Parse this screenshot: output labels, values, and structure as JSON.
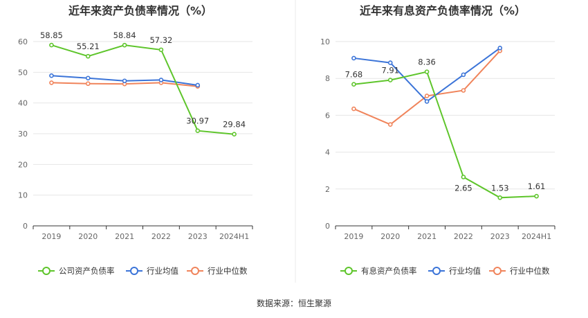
{
  "source": "数据来源：恒生聚源",
  "colors": {
    "green": "#5ec52b",
    "blue": "#3b74d8",
    "orange": "#f0845b",
    "grid": "#e6e6e6",
    "axis": "#333333",
    "divider": "#e8e8e8"
  },
  "chart_data": [
    {
      "type": "line",
      "title": "近年来资产负债率情况（%）",
      "categories": [
        "2019",
        "2020",
        "2021",
        "2022",
        "2023",
        "2024H1"
      ],
      "ylim": [
        0,
        60
      ],
      "yticks": [
        0,
        10,
        20,
        30,
        40,
        50,
        60
      ],
      "series": [
        {
          "name": "公司资产负债率",
          "color": "#5ec52b",
          "values": [
            58.85,
            55.21,
            58.84,
            57.32,
            30.97,
            29.84
          ],
          "labels": [
            "58.85",
            "55.21",
            "58.84",
            "57.32",
            "30.97",
            "29.84"
          ]
        },
        {
          "name": "行业均值",
          "color": "#3b74d8",
          "values": [
            48.9,
            48.1,
            47.2,
            47.5,
            45.8,
            null
          ]
        },
        {
          "name": "行业中位数",
          "color": "#f0845b",
          "values": [
            46.6,
            46.3,
            46.2,
            46.6,
            45.4,
            null
          ]
        }
      ]
    },
    {
      "type": "line",
      "title": "近年来有息资产负债率情况（%）",
      "categories": [
        "2019",
        "2020",
        "2021",
        "2022",
        "2023",
        "2024H1"
      ],
      "ylim": [
        0,
        10
      ],
      "yticks": [
        0,
        2,
        4,
        6,
        8,
        10
      ],
      "series": [
        {
          "name": "有息资产负债率",
          "color": "#5ec52b",
          "values": [
            7.68,
            7.91,
            8.36,
            2.65,
            1.53,
            1.61
          ],
          "labels": [
            "7.68",
            "7.91",
            "8.36",
            "2.65",
            "1.53",
            "1.61"
          ]
        },
        {
          "name": "行业均值",
          "color": "#3b74d8",
          "values": [
            9.1,
            8.85,
            6.75,
            8.2,
            9.65,
            null
          ]
        },
        {
          "name": "行业中位数",
          "color": "#f0845b",
          "values": [
            6.35,
            5.5,
            7.05,
            7.35,
            9.5,
            null
          ]
        }
      ]
    }
  ]
}
